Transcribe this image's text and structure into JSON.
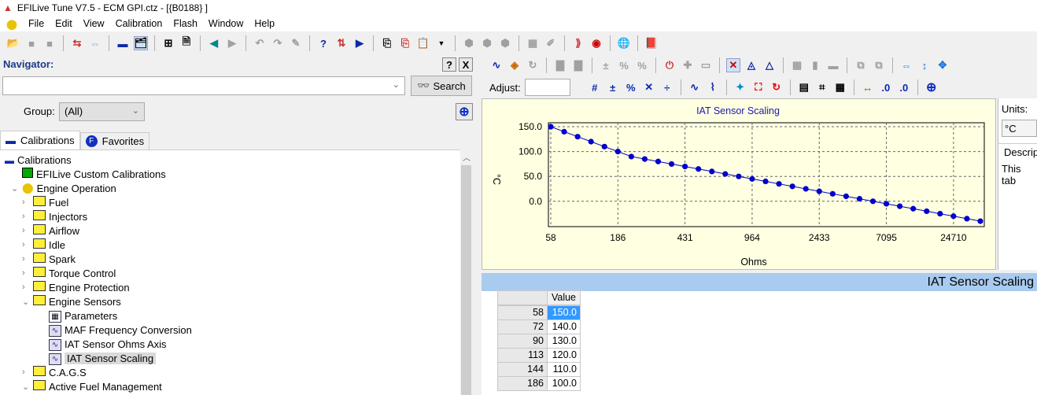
{
  "window": {
    "title": "EFILive Tune V7.5 - ECM GPI.ctz - [{B0188} ]"
  },
  "menu": [
    "File",
    "Edit",
    "View",
    "Calibration",
    "Flash",
    "Window",
    "Help"
  ],
  "navigator": {
    "label": "Navigator:",
    "help": "?",
    "close": "X",
    "search_value": "",
    "search_button": "Search",
    "group_label": "Group:",
    "group_value": "(All)"
  },
  "tabs": [
    {
      "label": "Calibrations",
      "active": true
    },
    {
      "label": "Favorites",
      "active": false
    }
  ],
  "tree": [
    {
      "label": "Calibrations",
      "level": 0,
      "icon": "car-icon"
    },
    {
      "label": "EFILive Custom Calibrations",
      "level": 1,
      "icon": "custom-calibration-icon"
    },
    {
      "label": "Engine Operation",
      "level": 1,
      "icon": "engine-icon",
      "expanded": true
    },
    {
      "label": "Fuel",
      "level": 2,
      "icon": "folder-icon"
    },
    {
      "label": "Injectors",
      "level": 2,
      "icon": "folder-icon"
    },
    {
      "label": "Airflow",
      "level": 2,
      "icon": "folder-icon"
    },
    {
      "label": "Idle",
      "level": 2,
      "icon": "folder-icon"
    },
    {
      "label": "Spark",
      "level": 2,
      "icon": "folder-icon"
    },
    {
      "label": "Torque Control",
      "level": 2,
      "icon": "folder-icon"
    },
    {
      "label": "Engine Protection",
      "level": 2,
      "icon": "folder-icon"
    },
    {
      "label": "Engine Sensors",
      "level": 2,
      "icon": "folder-icon",
      "expanded": true
    },
    {
      "label": "Parameters",
      "level": 3,
      "icon": "table-icon"
    },
    {
      "label": "MAF Frequency Conversion",
      "level": 3,
      "icon": "chart-icon"
    },
    {
      "label": "IAT Sensor Ohms Axis",
      "level": 3,
      "icon": "chart-icon"
    },
    {
      "label": "IAT Sensor Scaling",
      "level": 3,
      "icon": "chart-icon",
      "selected": true
    },
    {
      "label": "C.A.G.S",
      "level": 2,
      "icon": "folder-icon"
    },
    {
      "label": "Active Fuel Management",
      "level": 2,
      "icon": "folder-icon",
      "expanded": true
    }
  ],
  "adjust": {
    "label": "Adjust:",
    "value": ""
  },
  "units": {
    "label": "Units:",
    "value": "°C",
    "description_label": "Descrip",
    "description_text": "This tab"
  },
  "table": {
    "title": "IAT Sensor Scaling",
    "column_header": "Value",
    "rows": [
      [
        "58",
        "150.0"
      ],
      [
        "72",
        "140.0"
      ],
      [
        "90",
        "130.0"
      ],
      [
        "113",
        "120.0"
      ],
      [
        "144",
        "110.0"
      ],
      [
        "186",
        "100.0"
      ]
    ],
    "selected_row": 0
  },
  "colors": {
    "chart_bg": "#ffffe1",
    "series": "#0000cc",
    "title": "#1a1ab0",
    "table_band": "#a9cbef",
    "selection": "#3399ff"
  },
  "chart_data": {
    "type": "line",
    "title": "IAT Sensor Scaling",
    "xlabel": "Ohms",
    "ylabel": "°C",
    "x_tick_labels": [
      {
        "index": 0,
        "label": "58"
      },
      {
        "index": 5,
        "label": "186"
      },
      {
        "index": 10,
        "label": "431"
      },
      {
        "index": 15,
        "label": "964"
      },
      {
        "index": 20,
        "label": "2433"
      },
      {
        "index": 25,
        "label": "7095"
      },
      {
        "index": 30,
        "label": "24710"
      }
    ],
    "y_ticks": [
      "150.0",
      "100.0",
      "50.0",
      "0.0"
    ],
    "ylim": [
      -51,
      158
    ],
    "grid": true,
    "values": [
      150,
      140,
      130,
      120,
      110,
      100,
      90,
      85,
      80,
      75,
      70,
      65,
      60,
      55,
      50,
      45,
      40,
      35,
      30,
      25,
      20,
      15,
      10,
      5,
      0,
      -5,
      -10,
      -15,
      -20,
      -25,
      -30,
      -35,
      -40
    ]
  }
}
